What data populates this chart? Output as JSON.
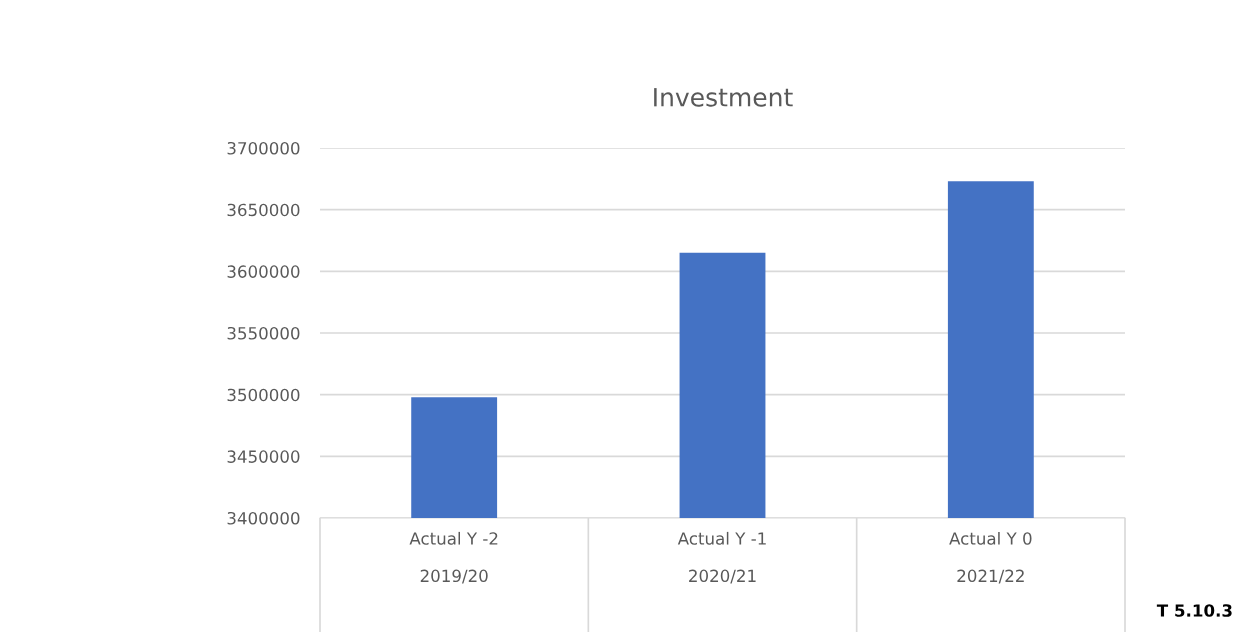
{
  "chart_data": {
    "type": "bar",
    "title": "Investment",
    "categories": [
      "Actual Y -2\n\n2019/20",
      "Actual Y -1\n\n2020/21",
      "Actual Y 0\n\n2021/22"
    ],
    "values": [
      3498000,
      3615000,
      3673000
    ],
    "color": "#4472c4",
    "ylim": [
      3400000,
      3700000
    ],
    "yticks": [
      3400000,
      3450000,
      3500000,
      3550000,
      3600000,
      3650000,
      3700000
    ],
    "grid": "y",
    "annotations": [
      "T 5.10.3"
    ]
  }
}
